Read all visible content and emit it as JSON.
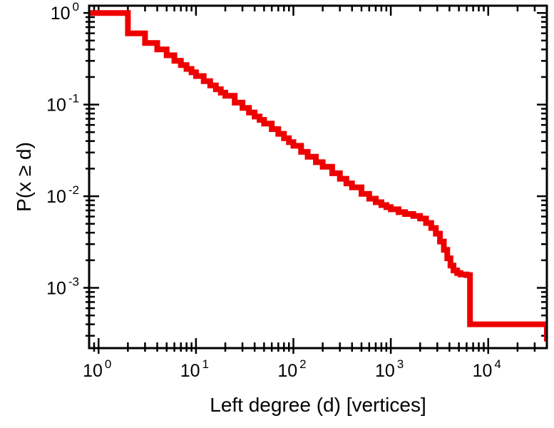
{
  "chart_data": {
    "type": "line",
    "subtype": "ccdf-step",
    "title": "",
    "xlabel": "Left degree (d) [vertices]",
    "ylabel": "P(x ≥ d)",
    "xscale": "log",
    "yscale": "log",
    "xlim": [
      0.8,
      40000
    ],
    "ylim": [
      0.00022,
      1.2
    ],
    "x_tick_exponents": [
      0,
      1,
      2,
      3,
      4
    ],
    "y_tick_exponents": [
      0,
      -1,
      -2,
      -3
    ],
    "tick_mantissa": "10",
    "grid": false,
    "legend": "none",
    "line_color": "#ee0000",
    "line_width": 8,
    "frame_color": "#000000",
    "points": [
      [
        1,
        1.0
      ],
      [
        2,
        0.6
      ],
      [
        3,
        0.47
      ],
      [
        4,
        0.4
      ],
      [
        5,
        0.345
      ],
      [
        6,
        0.3
      ],
      [
        7,
        0.27
      ],
      [
        8,
        0.245
      ],
      [
        9,
        0.225
      ],
      [
        10,
        0.205
      ],
      [
        12,
        0.18
      ],
      [
        14,
        0.162
      ],
      [
        16,
        0.147
      ],
      [
        18,
        0.135
      ],
      [
        20,
        0.125
      ],
      [
        25,
        0.105
      ],
      [
        30,
        0.092
      ],
      [
        35,
        0.082
      ],
      [
        40,
        0.074
      ],
      [
        45,
        0.068
      ],
      [
        50,
        0.062
      ],
      [
        60,
        0.054
      ],
      [
        70,
        0.048
      ],
      [
        80,
        0.043
      ],
      [
        90,
        0.039
      ],
      [
        100,
        0.0355
      ],
      [
        120,
        0.0305
      ],
      [
        140,
        0.027
      ],
      [
        170,
        0.0235
      ],
      [
        200,
        0.021
      ],
      [
        250,
        0.0178
      ],
      [
        300,
        0.0155
      ],
      [
        350,
        0.0138
      ],
      [
        400,
        0.0125
      ],
      [
        500,
        0.0106
      ],
      [
        600,
        0.0094
      ],
      [
        700,
        0.0086
      ],
      [
        800,
        0.008
      ],
      [
        900,
        0.0076
      ],
      [
        1000,
        0.0072
      ],
      [
        1200,
        0.0067
      ],
      [
        1400,
        0.0064
      ],
      [
        1700,
        0.0061
      ],
      [
        2000,
        0.0057
      ],
      [
        2300,
        0.0051
      ],
      [
        2600,
        0.0045
      ],
      [
        2900,
        0.0039
      ],
      [
        3200,
        0.0032
      ],
      [
        3500,
        0.0026
      ],
      [
        3800,
        0.0021
      ],
      [
        4100,
        0.00175
      ],
      [
        4400,
        0.00155
      ],
      [
        4800,
        0.00145
      ],
      [
        5200,
        0.0014
      ],
      [
        6000,
        0.00138
      ],
      [
        6500,
        0.0004
      ],
      [
        40000,
        0.00037
      ],
      [
        40000,
        0.00026
      ]
    ]
  }
}
